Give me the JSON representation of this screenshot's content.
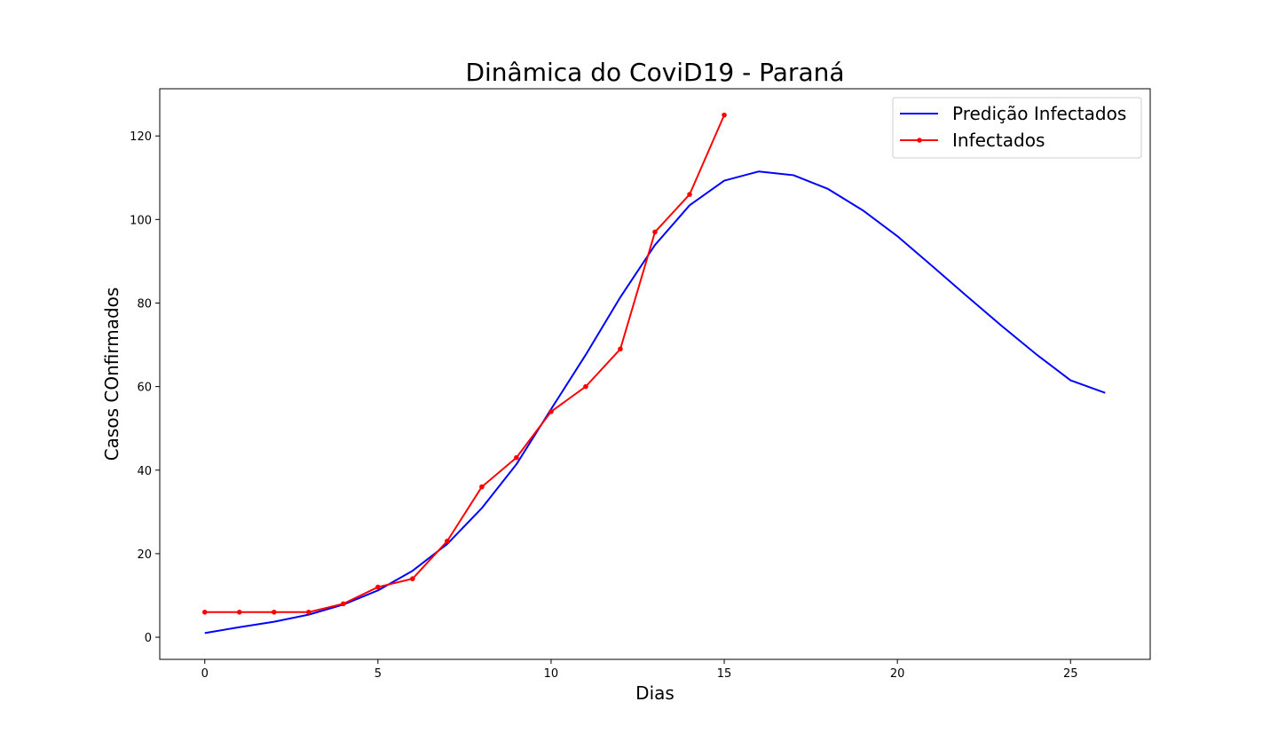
{
  "chart_data": {
    "type": "line",
    "title": "Dinâmica do CoviD19 - Paraná",
    "xlabel": "Dias",
    "ylabel": "Casos COnfirmados",
    "xlim": [
      -1.3,
      27.3
    ],
    "ylim": [
      -5.3,
      131.3
    ],
    "xticks": [
      0,
      5,
      10,
      15,
      20,
      25
    ],
    "yticks": [
      0,
      20,
      40,
      60,
      80,
      100,
      120
    ],
    "grid": false,
    "legend_position": "top-right",
    "series": [
      {
        "name": "Predição Infectados",
        "color": "#0000ff",
        "marker": "none",
        "x": [
          0,
          1,
          2,
          3,
          4,
          5,
          6,
          7,
          8,
          9,
          10,
          11,
          12,
          13,
          14,
          15,
          16,
          17,
          18,
          19,
          20,
          21,
          22,
          23,
          24,
          25,
          26
        ],
        "y": [
          1.0,
          2.4,
          3.7,
          5.4,
          7.8,
          11.2,
          15.9,
          22.3,
          30.9,
          41.4,
          54.6,
          67.6,
          81.4,
          93.9,
          103.4,
          109.3,
          111.5,
          110.6,
          107.3,
          102.2,
          96.0,
          88.9,
          81.7,
          74.6,
          67.8,
          61.5,
          58.5
        ]
      },
      {
        "name": "Infectados",
        "color": "#ff0000",
        "marker": "circle",
        "x": [
          0,
          1,
          2,
          3,
          4,
          5,
          6,
          7,
          8,
          9,
          10,
          11,
          12,
          13,
          14,
          15
        ],
        "y": [
          6,
          6,
          6,
          6,
          8,
          12,
          14,
          23,
          36,
          43,
          54,
          60,
          69,
          97,
          106,
          125
        ]
      }
    ]
  }
}
